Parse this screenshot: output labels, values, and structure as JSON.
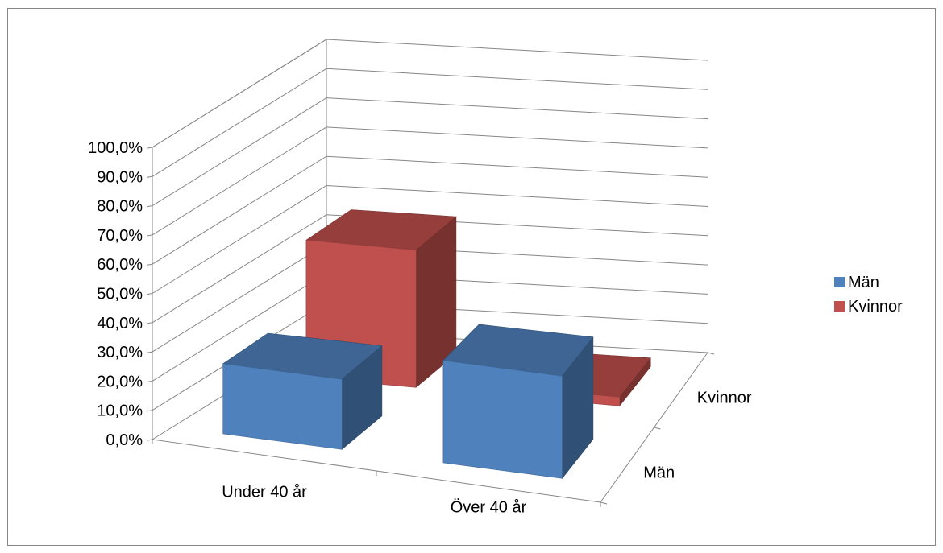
{
  "chart_data": {
    "type": "bar",
    "subtype": "3d-clustered-columns",
    "title": "",
    "xlabel": "",
    "ylabel": "",
    "categories": [
      "Under 40 år",
      "Över 40 år"
    ],
    "depth_categories": [
      "Män",
      "Kvinnor"
    ],
    "series": [
      {
        "name": "Män",
        "color": "#4F81BD",
        "values": [
          24.0,
          35.0
        ]
      },
      {
        "name": "Kvinnor",
        "color": "#C0504D",
        "values": [
          47.0,
          3.0
        ]
      }
    ],
    "ylim": [
      0,
      100
    ],
    "y_ticks": [
      "0,0%",
      "10,0%",
      "20,0%",
      "30,0%",
      "40,0%",
      "50,0%",
      "60,0%",
      "70,0%",
      "80,0%",
      "90,0%",
      "100,0%"
    ],
    "grid": true,
    "legend_position": "right"
  }
}
